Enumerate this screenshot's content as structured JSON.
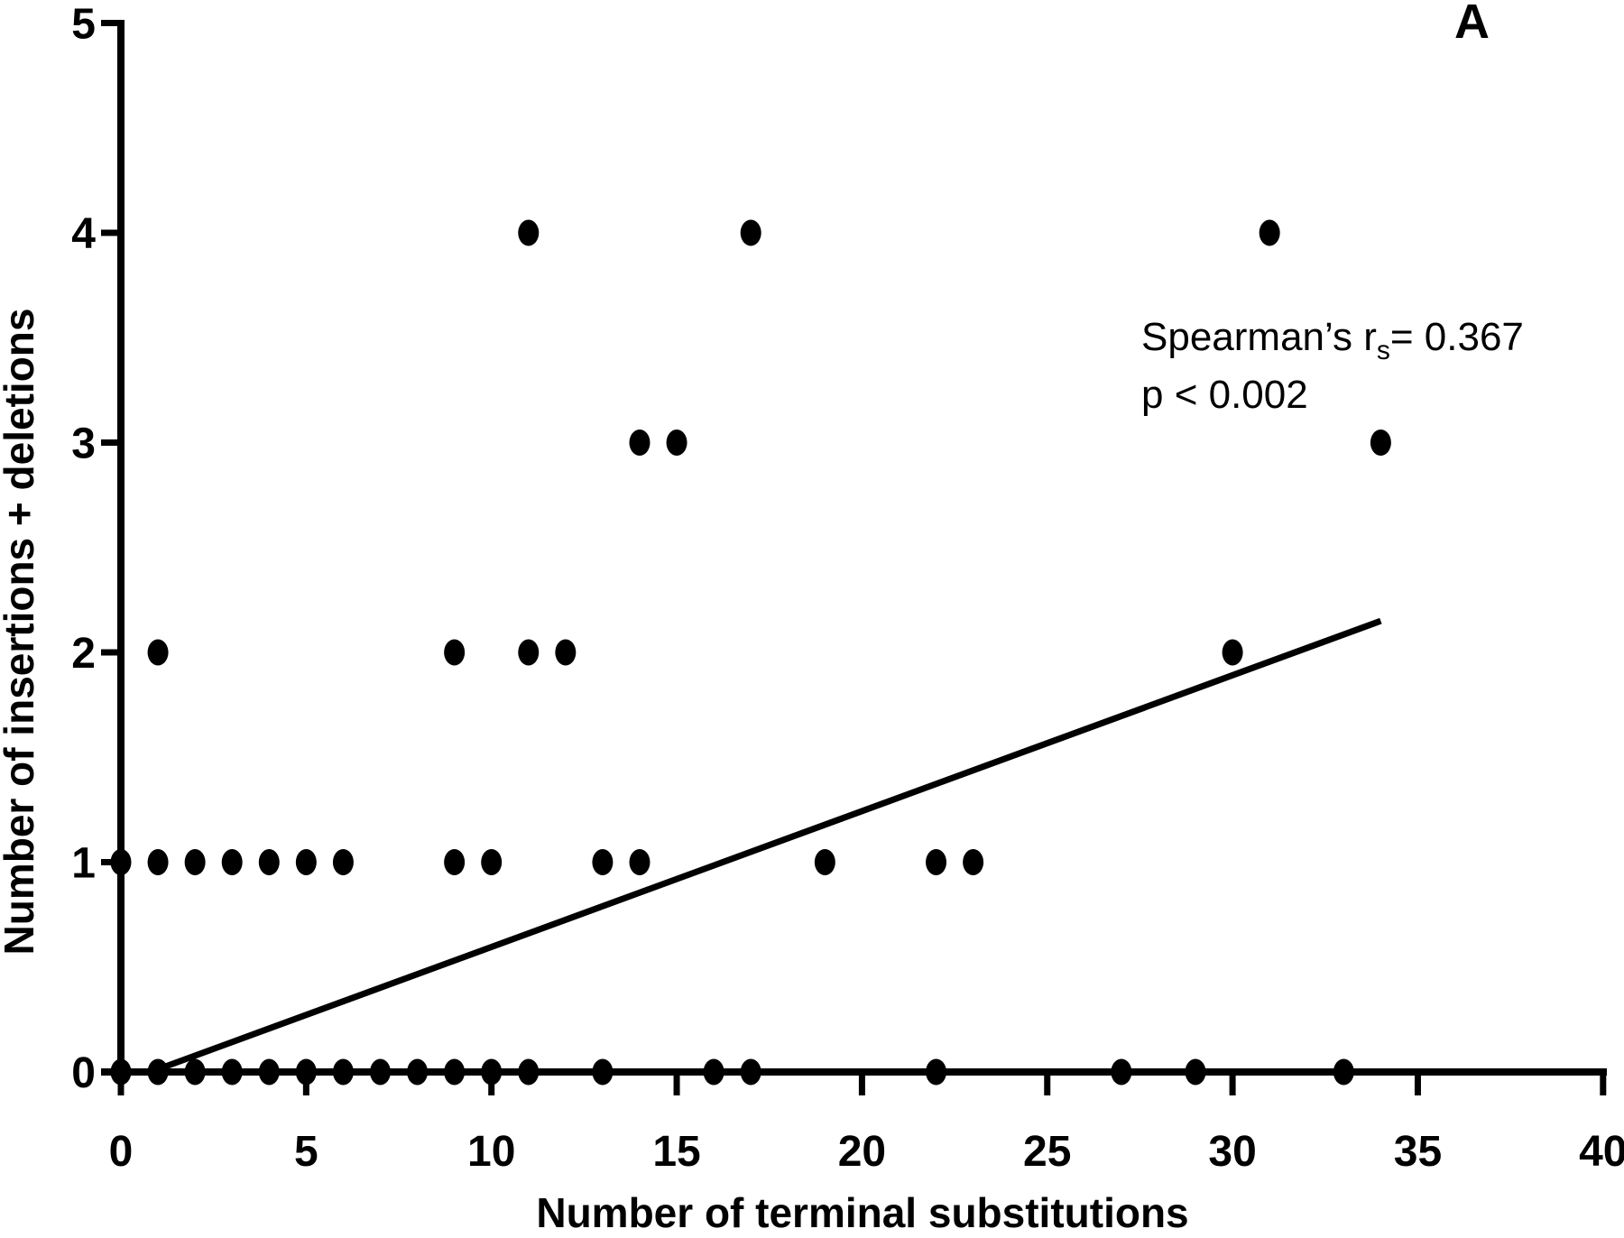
{
  "panel_label": "A",
  "annotation": {
    "line1_prefix": "Spearman’s r",
    "line1_sub": "s",
    "line1_suffix": "= 0.367",
    "line2": "p < 0.002"
  },
  "colors": {
    "ink": "#000000",
    "background": "#ffffff"
  },
  "chart_data": {
    "type": "scatter",
    "title": "",
    "xlabel": "Number of terminal substitutions",
    "ylabel": "Number of insertions + deletions",
    "xlim": [
      0,
      40
    ],
    "ylim": [
      0,
      5
    ],
    "x_ticks": [
      0,
      5,
      10,
      15,
      20,
      25,
      30,
      35,
      40
    ],
    "y_ticks": [
      0,
      1,
      2,
      3,
      4,
      5
    ],
    "grid": false,
    "legend": "none",
    "marker": "filled-black-dot",
    "points": [
      [
        0,
        0
      ],
      [
        1,
        0
      ],
      [
        2,
        0
      ],
      [
        3,
        0
      ],
      [
        4,
        0
      ],
      [
        5,
        0
      ],
      [
        6,
        0
      ],
      [
        7,
        0
      ],
      [
        8,
        0
      ],
      [
        9,
        0
      ],
      [
        10,
        0
      ],
      [
        11,
        0
      ],
      [
        13,
        0
      ],
      [
        16,
        0
      ],
      [
        17,
        0
      ],
      [
        22,
        0
      ],
      [
        27,
        0
      ],
      [
        29,
        0
      ],
      [
        33,
        0
      ],
      [
        0,
        1
      ],
      [
        1,
        1
      ],
      [
        2,
        1
      ],
      [
        3,
        1
      ],
      [
        4,
        1
      ],
      [
        5,
        1
      ],
      [
        6,
        1
      ],
      [
        9,
        1
      ],
      [
        10,
        1
      ],
      [
        13,
        1
      ],
      [
        14,
        1
      ],
      [
        19,
        1
      ],
      [
        22,
        1
      ],
      [
        23,
        1
      ],
      [
        1,
        2
      ],
      [
        9,
        2
      ],
      [
        11,
        2
      ],
      [
        12,
        2
      ],
      [
        30,
        2
      ],
      [
        14,
        3
      ],
      [
        15,
        3
      ],
      [
        34,
        3
      ],
      [
        11,
        4
      ],
      [
        17,
        4
      ],
      [
        31,
        4
      ]
    ],
    "trend_line": {
      "x1": 0.8,
      "y1": 0,
      "x2": 34.0,
      "y2": 2.15
    },
    "stats": {
      "spearman_rs": 0.367,
      "p": "< 0.002"
    }
  }
}
